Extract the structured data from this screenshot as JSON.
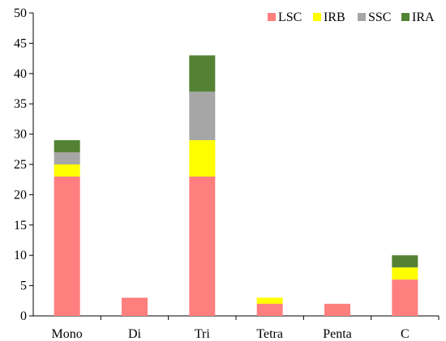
{
  "chart_data": {
    "type": "bar",
    "stacked": true,
    "categories": [
      "Mono",
      "Di",
      "Tri",
      "Tetra",
      "Penta",
      "C"
    ],
    "series": [
      {
        "name": "LSC",
        "color": "#ff7f7f",
        "values": [
          23,
          3,
          23,
          2,
          2,
          6
        ]
      },
      {
        "name": "IRB",
        "color": "#ffff00",
        "values": [
          2,
          0,
          6,
          1,
          0,
          2
        ]
      },
      {
        "name": "SSC",
        "color": "#a6a6a6",
        "values": [
          2,
          0,
          8,
          0,
          0,
          0
        ]
      },
      {
        "name": "IRA",
        "color": "#548235",
        "values": [
          2,
          0,
          6,
          0,
          0,
          2
        ]
      }
    ],
    "title": "",
    "xlabel": "",
    "ylabel": "",
    "ylim": [
      0,
      50
    ],
    "yticks": [
      0,
      5,
      10,
      15,
      20,
      25,
      30,
      35,
      40,
      45,
      50
    ],
    "grid": false,
    "legend_position": "top-right"
  }
}
